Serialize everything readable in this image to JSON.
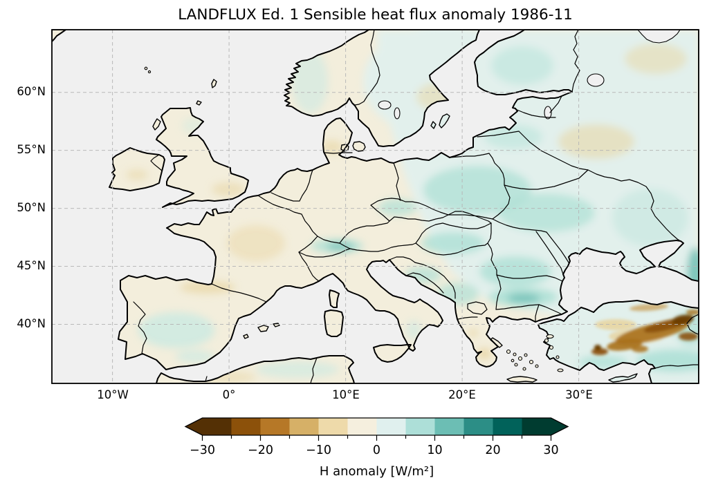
{
  "figure": {
    "title": "LANDFLUX Ed. 1 Sensible heat flux anomaly 1986-11"
  },
  "map": {
    "projection": "PlateCarree",
    "extent": {
      "lon_min": -15.2,
      "lon_max": 40.3,
      "lat_min": 34.9,
      "lat_max": 65.4
    },
    "x_tick_labels": [
      "10°W",
      "0°",
      "10°E",
      "20°E",
      "30°E"
    ],
    "y_tick_labels": [
      "60°N",
      "55°N",
      "50°N",
      "45°N",
      "40°N"
    ],
    "ocean_color": "#f0f0f0",
    "coastline_color": "#000000",
    "gridline_color": "#b5b5b5",
    "background_color": "#ffffff",
    "palette": {
      "ocean": "#f0f0f0",
      "cream": "#f3eedc",
      "pale_teal": "#e2f0ec",
      "teal_light": "#cdeae2",
      "teal_mid": "#aee0d6",
      "teal_deep": "#6cbeb4",
      "teal_dark": "#2c8e86",
      "tan": "#e8d5a2",
      "brown_light": "#c89a4e",
      "brown_mid": "#a9701b",
      "brown_deep": "#8c510a",
      "brown_dark": "#6b3d06"
    },
    "regions": [
      {
        "name": "continental-europe",
        "fill": "cream"
      },
      {
        "name": "scandinavia",
        "fill": "cream"
      },
      {
        "name": "great-britain",
        "fill": "cream"
      },
      {
        "name": "ireland",
        "fill": "cream"
      },
      {
        "name": "anatolia-turkey",
        "fill": "pale_teal"
      },
      {
        "name": "north-africa",
        "fill": "cream"
      },
      {
        "name": "eastern-europe-overlay",
        "fill": "pale_teal"
      },
      {
        "name": "east-anatolia-anomaly",
        "fill": "brown_deep"
      }
    ]
  },
  "colorbar": {
    "label": "H anomaly [W/m²]",
    "levels": [
      -30,
      -25,
      -20,
      -15,
      -10,
      -5,
      0,
      5,
      10,
      15,
      20,
      25,
      30
    ],
    "ticks": [
      {
        "value": -30,
        "label": "−30"
      },
      {
        "value": -20,
        "label": "−20"
      },
      {
        "value": -10,
        "label": "−10"
      },
      {
        "value": 0,
        "label": "0"
      },
      {
        "value": 10,
        "label": "10"
      },
      {
        "value": 20,
        "label": "20"
      },
      {
        "value": 30,
        "label": "30"
      }
    ],
    "colors": [
      "#543005",
      "#8c510a",
      "#b67827",
      "#d6b067",
      "#eedaaa",
      "#f5efde",
      "#e0f0ee",
      "#addfd8",
      "#6cbeb4",
      "#2c8e86",
      "#01625a",
      "#003c30"
    ],
    "under_color": "#543005",
    "over_color": "#003c30",
    "extend": "both"
  },
  "chart_data": {
    "type": "heatmap",
    "title": "LANDFLUX Ed. 1 Sensible heat flux anomaly 1986-11",
    "colorbar_label": "H anomaly [W/m²]",
    "value_range": [
      -30,
      30
    ],
    "colormap": "BrBG (discrete, 5 W/m² steps, extended both ends)",
    "lon_ticks": [
      -10,
      0,
      10,
      20,
      30
    ],
    "lat_ticks": [
      60,
      55,
      50,
      45,
      40
    ],
    "notable_features": [
      {
        "region": "western-europe",
        "anomaly": "-2 to -7"
      },
      {
        "region": "eastern-europe-balkans",
        "anomaly": "+3 to +10"
      },
      {
        "region": "eastern-anatolia",
        "anomaly": "-15 to -30"
      },
      {
        "region": "caucasus-edge",
        "anomaly": "+10 to +20"
      }
    ]
  }
}
